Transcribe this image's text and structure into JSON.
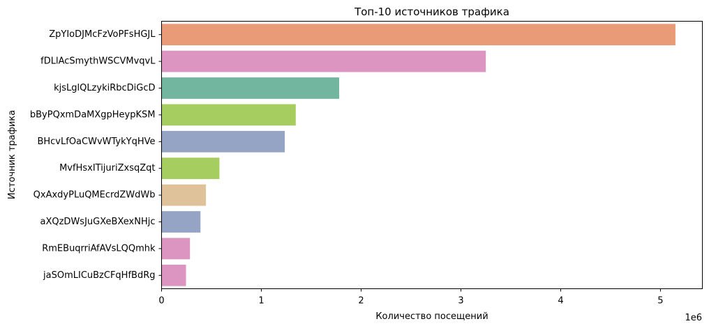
{
  "chart_data": {
    "type": "bar",
    "orientation": "horizontal",
    "title": "Топ-10 источников трафика",
    "xlabel": "Количество посещений",
    "ylabel": "Источник трафика",
    "x_scale_label": "1e6",
    "xlim": [
      0,
      5420000
    ],
    "xticks": [
      0,
      1000000,
      2000000,
      3000000,
      4000000,
      5000000
    ],
    "xtick_labels": [
      "0",
      "1",
      "2",
      "3",
      "4",
      "5"
    ],
    "grid": false,
    "categories": [
      "ZpYIoDJMcFzVoPFsHGJL",
      "fDLlAcSmythWSCVMvqvL",
      "kjsLglQLzykiRbcDiGcD",
      "bByPQxmDaMXgpHeypKSM",
      "BHcvLfOaCWvWTykYqHVe",
      "MvfHsxITijuriZxsqZqt",
      "QxAxdyPLuQMEcrdZWdWb",
      "aXQzDWsJuGXeBXexNHjc",
      "RmEBuqrriAfAVsLQQmhk",
      "jaSOmLICuBzCFqHfBdRg"
    ],
    "values": [
      5150000,
      3250000,
      1780000,
      1345000,
      1235000,
      580000,
      445000,
      390000,
      285000,
      245000
    ],
    "colors": [
      "#e99a76",
      "#dc95c0",
      "#73b6a0",
      "#a6cd5f",
      "#95a4c4",
      "#a6cd5f",
      "#dfc299",
      "#95a4c4",
      "#dc95c0",
      "#dc95c0"
    ]
  }
}
